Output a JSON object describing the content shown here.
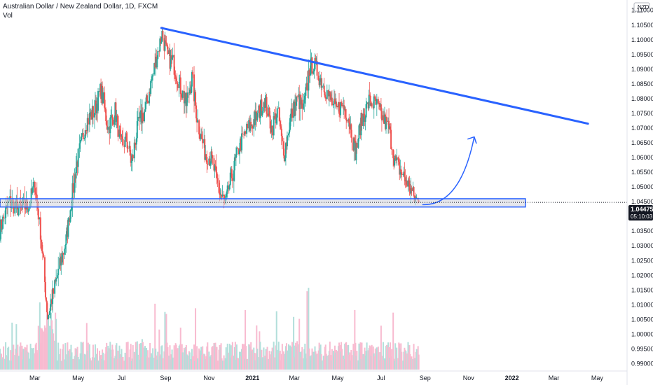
{
  "header": {
    "title": "Australian Dollar / New Zealand Dollar, 1D, FXCM",
    "volume_label": "Vol"
  },
  "currency_label": "NZD",
  "current": {
    "price": "1.04475",
    "countdown": "05:10:03"
  },
  "colors": {
    "up": "#26a69a",
    "down": "#ef5350",
    "vol_up": "#b2dfdb",
    "vol_down": "#f8bbd0",
    "drawing": "#2962ff",
    "zone_fill": "#d1d4dc"
  },
  "chart_data": {
    "type": "candlestick",
    "symbol": "AUDNZD",
    "interval": "1D",
    "source": "FXCM",
    "ylim": [
      0.9875,
      1.1135
    ],
    "y_ticks": [
      "1.11000",
      "1.10500",
      "1.10000",
      "1.09500",
      "1.09000",
      "1.08500",
      "1.08000",
      "1.07500",
      "1.07000",
      "1.06500",
      "1.06000",
      "1.05500",
      "1.05000",
      "1.04500",
      "1.04000",
      "1.03500",
      "1.03000",
      "1.02500",
      "1.02000",
      "1.01500",
      "1.01000",
      "1.00500",
      "1.00000",
      "0.99500",
      "0.99000"
    ],
    "x_ticks": [
      {
        "label": "Mar",
        "date": "2020-03-01"
      },
      {
        "label": "May",
        "date": "2020-05-01"
      },
      {
        "label": "Jul",
        "date": "2020-07-01"
      },
      {
        "label": "Sep",
        "date": "2020-09-01"
      },
      {
        "label": "Nov",
        "date": "2020-11-01"
      },
      {
        "label": "2021",
        "date": "2021-01-01",
        "major": true
      },
      {
        "label": "Mar",
        "date": "2021-03-01"
      },
      {
        "label": "May",
        "date": "2021-05-01"
      },
      {
        "label": "Jul",
        "date": "2021-07-01"
      },
      {
        "label": "Sep",
        "date": "2021-09-01"
      },
      {
        "label": "Nov",
        "date": "2021-11-01"
      },
      {
        "label": "2022",
        "date": "2022-01-01",
        "major": true
      },
      {
        "label": "Mar",
        "date": "2022-03-01"
      },
      {
        "label": "May",
        "date": "2022-05-01"
      }
    ],
    "x_range": [
      "2020-01-12",
      "2022-06-12"
    ],
    "last_close": 1.04475,
    "path_points": [
      {
        "date": "2020-01-12",
        "close": 1.0355
      },
      {
        "date": "2020-01-25",
        "close": 1.045
      },
      {
        "date": "2020-02-08",
        "close": 1.0425
      },
      {
        "date": "2020-02-22",
        "close": 1.044
      },
      {
        "date": "2020-03-01",
        "close": 1.051
      },
      {
        "date": "2020-03-09",
        "close": 1.035
      },
      {
        "date": "2020-03-19",
        "close": 1.006
      },
      {
        "date": "2020-03-25",
        "close": 1.012
      },
      {
        "date": "2020-04-02",
        "close": 1.02
      },
      {
        "date": "2020-04-14",
        "close": 1.032
      },
      {
        "date": "2020-04-28",
        "close": 1.057
      },
      {
        "date": "2020-05-12",
        "close": 1.072
      },
      {
        "date": "2020-05-24",
        "close": 1.076
      },
      {
        "date": "2020-06-02",
        "close": 1.083
      },
      {
        "date": "2020-06-12",
        "close": 1.07
      },
      {
        "date": "2020-06-22",
        "close": 1.076
      },
      {
        "date": "2020-06-30",
        "close": 1.064
      },
      {
        "date": "2020-07-08",
        "close": 1.066
      },
      {
        "date": "2020-07-15",
        "close": 1.058
      },
      {
        "date": "2020-07-25",
        "close": 1.072
      },
      {
        "date": "2020-08-03",
        "close": 1.076
      },
      {
        "date": "2020-08-12",
        "close": 1.086
      },
      {
        "date": "2020-08-22",
        "close": 1.097
      },
      {
        "date": "2020-08-27",
        "close": 1.102
      },
      {
        "date": "2020-09-04",
        "close": 1.094
      },
      {
        "date": "2020-09-12",
        "close": 1.092
      },
      {
        "date": "2020-09-20",
        "close": 1.085
      },
      {
        "date": "2020-09-30",
        "close": 1.078
      },
      {
        "date": "2020-10-08",
        "close": 1.087
      },
      {
        "date": "2020-10-16",
        "close": 1.072
      },
      {
        "date": "2020-10-26",
        "close": 1.062
      },
      {
        "date": "2020-11-05",
        "close": 1.059
      },
      {
        "date": "2020-11-16",
        "close": 1.048
      },
      {
        "date": "2020-11-24",
        "close": 1.044
      },
      {
        "date": "2020-12-02",
        "close": 1.053
      },
      {
        "date": "2020-12-14",
        "close": 1.064
      },
      {
        "date": "2020-12-26",
        "close": 1.07
      },
      {
        "date": "2021-01-08",
        "close": 1.074
      },
      {
        "date": "2021-01-18",
        "close": 1.08
      },
      {
        "date": "2021-01-28",
        "close": 1.07
      },
      {
        "date": "2021-02-06",
        "close": 1.076
      },
      {
        "date": "2021-02-14",
        "close": 1.06
      },
      {
        "date": "2021-02-24",
        "close": 1.074
      },
      {
        "date": "2021-03-06",
        "close": 1.08
      },
      {
        "date": "2021-03-14",
        "close": 1.076
      },
      {
        "date": "2021-03-22",
        "close": 1.09
      },
      {
        "date": "2021-03-28",
        "close": 1.092
      },
      {
        "date": "2021-04-08",
        "close": 1.086
      },
      {
        "date": "2021-04-18",
        "close": 1.081
      },
      {
        "date": "2021-04-28",
        "close": 1.076
      },
      {
        "date": "2021-05-08",
        "close": 1.078
      },
      {
        "date": "2021-05-16",
        "close": 1.074
      },
      {
        "date": "2021-05-26",
        "close": 1.062
      },
      {
        "date": "2021-06-03",
        "close": 1.072
      },
      {
        "date": "2021-06-14",
        "close": 1.079
      },
      {
        "date": "2021-06-24",
        "close": 1.078
      },
      {
        "date": "2021-07-04",
        "close": 1.073
      },
      {
        "date": "2021-07-12",
        "close": 1.07
      },
      {
        "date": "2021-07-20",
        "close": 1.059
      },
      {
        "date": "2021-08-01",
        "close": 1.054
      },
      {
        "date": "2021-08-10",
        "close": 1.05
      },
      {
        "date": "2021-08-17",
        "close": 1.046
      },
      {
        "date": "2021-08-23",
        "close": 1.04475
      }
    ],
    "annotations": [
      {
        "type": "trendline",
        "from": {
          "date": "2020-08-26",
          "price": 1.104
        },
        "to": {
          "date": "2022-04-18",
          "price": 1.0715
        }
      },
      {
        "type": "rectangle",
        "from": {
          "date": "2020-01-12",
          "price": 1.046
        },
        "to": {
          "date": "2022-01-20",
          "price": 1.0432
        }
      },
      {
        "type": "curved-arrow",
        "from": {
          "date": "2021-08-28",
          "price": 1.044
        },
        "to": {
          "date": "2021-11-09",
          "price": 1.067
        }
      },
      {
        "type": "price-line",
        "price": 1.04475
      }
    ],
    "grid": false
  }
}
